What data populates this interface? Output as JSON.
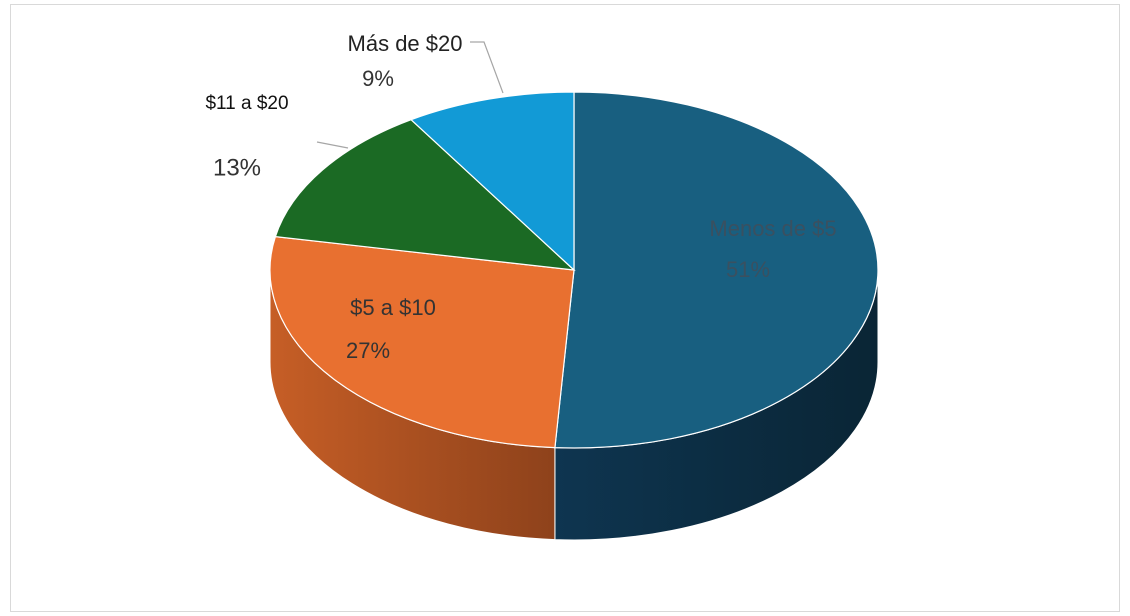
{
  "chart_data": {
    "type": "pie3d",
    "categories": [
      "Menos de $5",
      "$5 a $10",
      "$11 a $20",
      "Más de $20"
    ],
    "values": [
      51,
      27,
      13,
      9
    ],
    "value_labels": [
      "51%",
      "27%",
      "13%",
      "9%"
    ],
    "colors": [
      "#185f80",
      "#e87030",
      "#1b6a24",
      "#129ad6"
    ]
  }
}
